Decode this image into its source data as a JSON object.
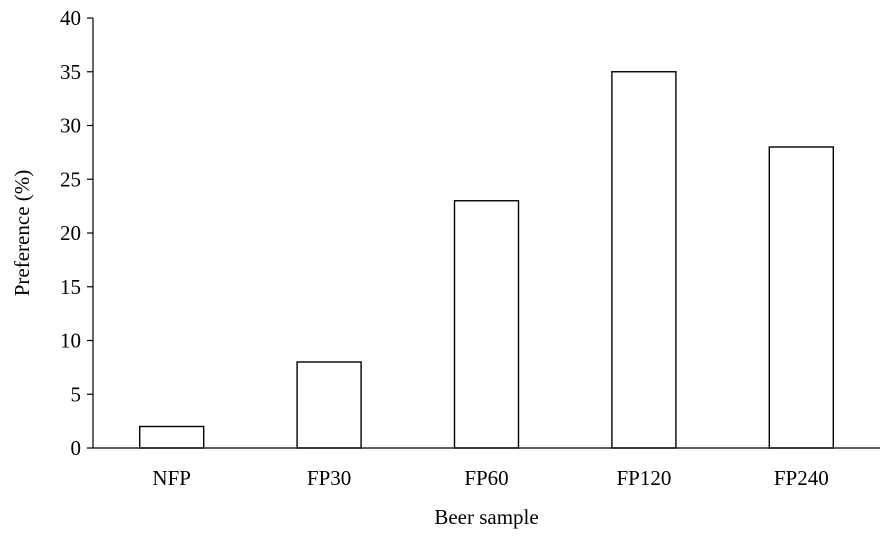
{
  "chart_data": {
    "type": "bar",
    "title": "",
    "xlabel": "Beer sample",
    "ylabel": "Preference (%)",
    "categories": [
      "NFP",
      "FP30",
      "FP60",
      "FP120",
      "FP240"
    ],
    "values": [
      2,
      8,
      23,
      35,
      28
    ],
    "ylim": [
      0,
      40
    ],
    "yticks": [
      0,
      5,
      10,
      15,
      20,
      25,
      30,
      35,
      40
    ],
    "grid": false,
    "legend": "none",
    "bar_fill": "#ffffff",
    "bar_stroke": "#000000"
  }
}
